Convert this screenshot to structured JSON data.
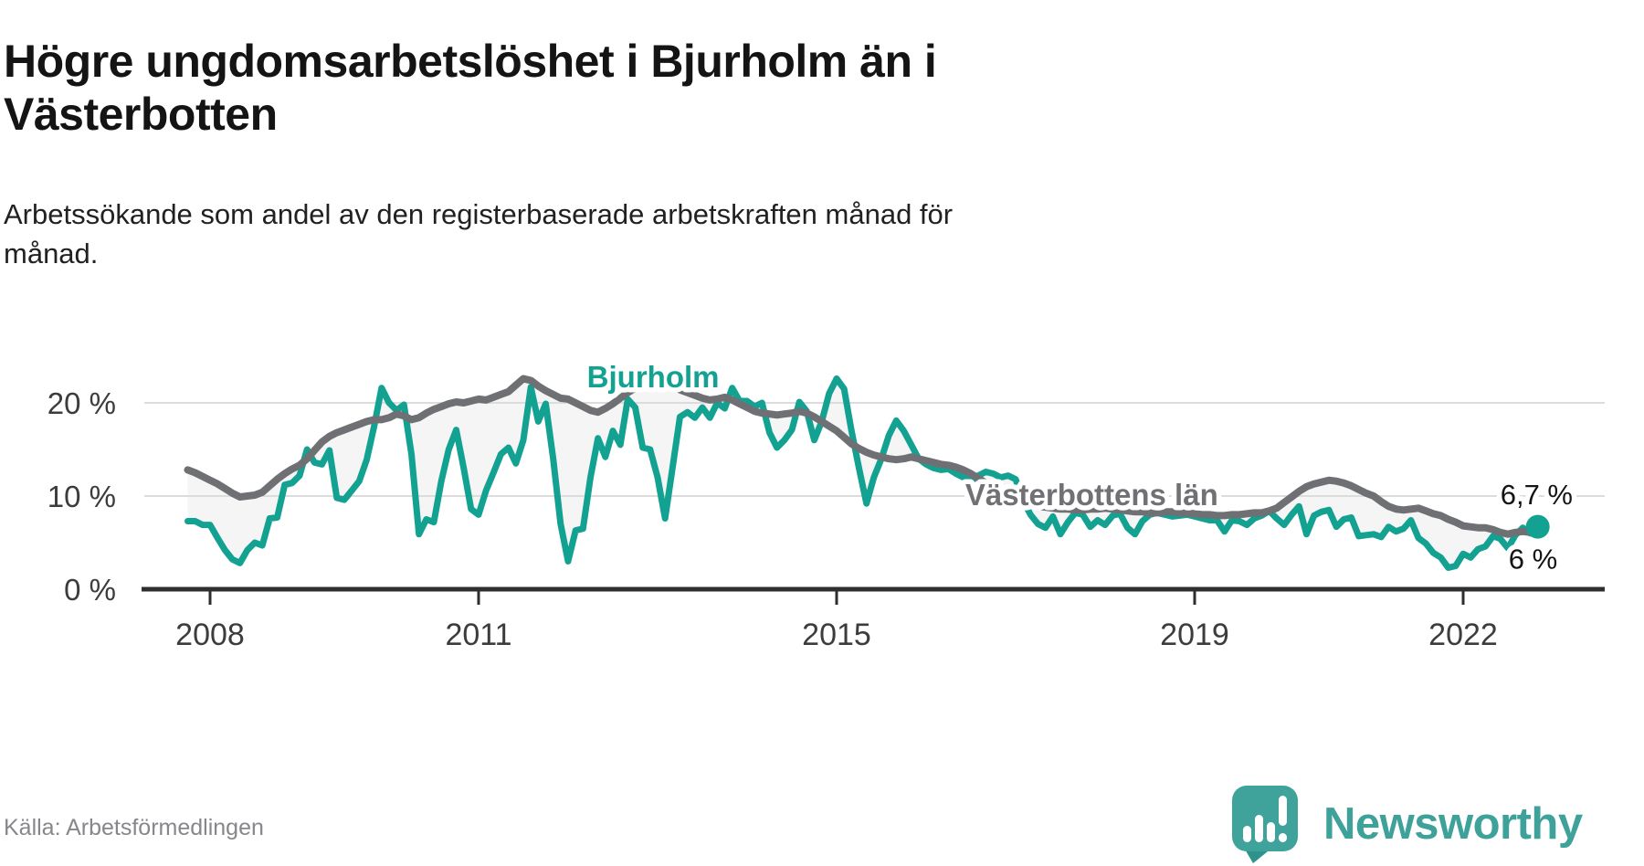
{
  "header": {
    "title_line1": "Högre ungdomsarbetslöshet i Bjurholm än i",
    "title_line2": "Västerbotten",
    "subtitle_line1": "Arbetssökande som andel av den registerbaserade arbetskraften månad för",
    "subtitle_line2": "månad."
  },
  "footer": {
    "source": "Källa: Arbetsförmedlingen",
    "brand": "Newsworthy"
  },
  "chart_data": {
    "type": "line",
    "title": "Högre ungdomsarbetslöshet i Bjurholm än i Västerbotten",
    "subtitle": "Arbetssökande som andel av den registerbaserade arbetskraften månad för månad.",
    "unit": "%",
    "grid": "horizontal",
    "legend_position": "inline-labels",
    "fill_between_color": "#f5f5f5",
    "axis_color": "#2e2e2e",
    "gridline_color": "#dcdcdc",
    "tick_label_color": "#3c3c3c",
    "x_start": 2007.75,
    "x_step": "month",
    "xlim": [
      2007.6,
      2023.2
    ],
    "ylim": [
      0,
      24
    ],
    "x_ticks": [
      {
        "value": 2008,
        "label": "2008"
      },
      {
        "value": 2011,
        "label": "2011"
      },
      {
        "value": 2015,
        "label": "2015"
      },
      {
        "value": 2019,
        "label": "2019"
      },
      {
        "value": 2022,
        "label": "2022"
      }
    ],
    "y_ticks": [
      {
        "value": 0,
        "label": "0 %"
      },
      {
        "value": 10,
        "label": "10 %"
      },
      {
        "value": 20,
        "label": "20 %"
      }
    ],
    "series": [
      {
        "name": "Bjurholm",
        "color": "#13A191",
        "line_width": 7,
        "end_label": "6,7 %",
        "end_value": 6.7,
        "end_dot": true,
        "values": [
          7.3,
          7.3,
          6.9,
          6.9,
          5.5,
          4.2,
          3.2,
          2.8,
          4.2,
          5.0,
          4.7,
          7.6,
          7.7,
          11.2,
          11.4,
          12.2,
          15.0,
          13.6,
          13.4,
          14.9,
          9.8,
          9.6,
          10.6,
          11.6,
          13.9,
          17.5,
          21.6,
          20.0,
          19.2,
          19.8,
          14.5,
          5.9,
          7.5,
          7.2,
          11.6,
          15.0,
          17.1,
          13.0,
          8.6,
          8.0,
          10.6,
          12.5,
          14.5,
          15.2,
          13.5,
          16.0,
          21.7,
          18.0,
          19.9,
          14.0,
          7.0,
          3.0,
          6.3,
          6.5,
          12.0,
          16.2,
          14.2,
          17.0,
          15.5,
          20.4,
          19.5,
          15.2,
          15.0,
          12.0,
          7.6,
          13.0,
          18.5,
          19.0,
          18.4,
          19.5,
          18.4,
          20.0,
          19.4,
          21.6,
          20.2,
          20.2,
          19.6,
          20.0,
          16.8,
          15.2,
          16.0,
          17.1,
          20.1,
          19.1,
          16.0,
          18.0,
          21.0,
          22.6,
          21.5,
          17.0,
          13.0,
          9.2,
          12.0,
          14.0,
          16.5,
          18.1,
          17.0,
          15.5,
          14.0,
          13.4,
          13.0,
          12.8,
          12.9,
          12.4,
          12.0,
          11.6,
          12.2,
          12.6,
          12.4,
          12.0,
          12.2,
          11.8,
          9.5,
          8.0,
          7.0,
          6.6,
          7.8,
          5.9,
          7.2,
          8.2,
          8.0,
          6.7,
          7.4,
          6.9,
          7.9,
          8.1,
          6.6,
          5.9,
          7.3,
          8.0,
          8.2,
          8.0,
          7.8,
          7.9,
          8.0,
          7.8,
          7.6,
          7.4,
          7.4,
          6.2,
          7.4,
          7.3,
          6.9,
          7.6,
          7.9,
          8.4,
          7.6,
          6.9,
          8.0,
          8.9,
          5.9,
          7.9,
          8.3,
          8.5,
          6.7,
          7.5,
          7.7,
          5.7,
          5.8,
          5.9,
          5.6,
          6.7,
          6.2,
          6.5,
          7.4,
          5.5,
          4.9,
          3.9,
          3.4,
          2.3,
          2.5,
          3.8,
          3.4,
          4.3,
          4.6,
          5.7,
          5.4,
          4.4,
          5.8,
          6.6,
          6.0,
          6.7
        ]
      },
      {
        "name": "Västerbottens län",
        "color": "#6F7073",
        "line_width": 8,
        "end_label": "6 %",
        "end_value": 6.0,
        "end_dot": false,
        "values": [
          12.8,
          12.5,
          12.1,
          11.7,
          11.3,
          10.8,
          10.3,
          9.9,
          10.0,
          10.1,
          10.4,
          11.1,
          11.8,
          12.4,
          12.9,
          13.3,
          14.0,
          14.9,
          15.8,
          16.4,
          16.8,
          17.1,
          17.4,
          17.7,
          18.0,
          18.2,
          18.2,
          18.4,
          18.8,
          18.6,
          18.2,
          18.4,
          18.9,
          19.3,
          19.6,
          19.9,
          20.1,
          20.0,
          20.2,
          20.4,
          20.3,
          20.6,
          20.9,
          21.2,
          21.9,
          22.6,
          22.4,
          21.8,
          21.3,
          20.9,
          20.5,
          20.4,
          20.0,
          19.6,
          19.2,
          19.0,
          19.4,
          19.9,
          20.5,
          21.1,
          21.6,
          21.9,
          22.1,
          22.4,
          22.2,
          21.8,
          21.4,
          21.1,
          20.8,
          20.5,
          20.3,
          20.4,
          20.6,
          20.3,
          19.9,
          19.5,
          19.1,
          18.9,
          18.8,
          18.7,
          18.8,
          18.9,
          19.1,
          18.9,
          18.5,
          18.0,
          17.5,
          17.0,
          16.3,
          15.6,
          15.1,
          14.7,
          14.4,
          14.2,
          14.0,
          13.9,
          14.0,
          14.2,
          14.0,
          13.8,
          13.6,
          13.4,
          13.3,
          13.1,
          12.8,
          12.4,
          11.9,
          11.4,
          10.9,
          10.5,
          10.1,
          9.7,
          9.4,
          9.1,
          8.9,
          8.8,
          8.7,
          8.6,
          8.6,
          8.5,
          8.5,
          8.6,
          8.6,
          8.7,
          8.6,
          8.5,
          8.4,
          8.3,
          8.3,
          8.2,
          8.2,
          8.3,
          8.3,
          8.2,
          8.2,
          8.1,
          8.0,
          8.0,
          7.9,
          7.9,
          8.0,
          8.0,
          8.1,
          8.2,
          8.2,
          8.4,
          8.7,
          9.3,
          9.9,
          10.5,
          11.0,
          11.3,
          11.5,
          11.7,
          11.6,
          11.4,
          11.1,
          10.7,
          10.3,
          10.0,
          9.4,
          8.9,
          8.6,
          8.5,
          8.6,
          8.7,
          8.4,
          8.1,
          7.9,
          7.5,
          7.2,
          6.8,
          6.7,
          6.6,
          6.6,
          6.4,
          6.1,
          5.9,
          6.1,
          6.2,
          6.1,
          6.0
        ]
      }
    ],
    "annotations": [
      {
        "id": "label-bjurholm",
        "text": "Bjurholm",
        "x": 2012.95,
        "y": 22.75,
        "color": "#13A191",
        "bold": true,
        "size": 33
      },
      {
        "id": "label-vasterbotten",
        "text": "Västerbottens län",
        "x": 2017.85,
        "y": 10.1,
        "color": "#717175",
        "bold": true,
        "size": 33
      },
      {
        "id": "end-label-bjurholm",
        "text": "6,7 %",
        "x": 2022.82,
        "y": 10.2,
        "color": "#141414",
        "bold": false,
        "size": 31
      },
      {
        "id": "end-label-vasterbotten",
        "text": "6 %",
        "x": 2022.78,
        "y": 3.3,
        "color": "#141414",
        "bold": false,
        "size": 31
      }
    ]
  }
}
